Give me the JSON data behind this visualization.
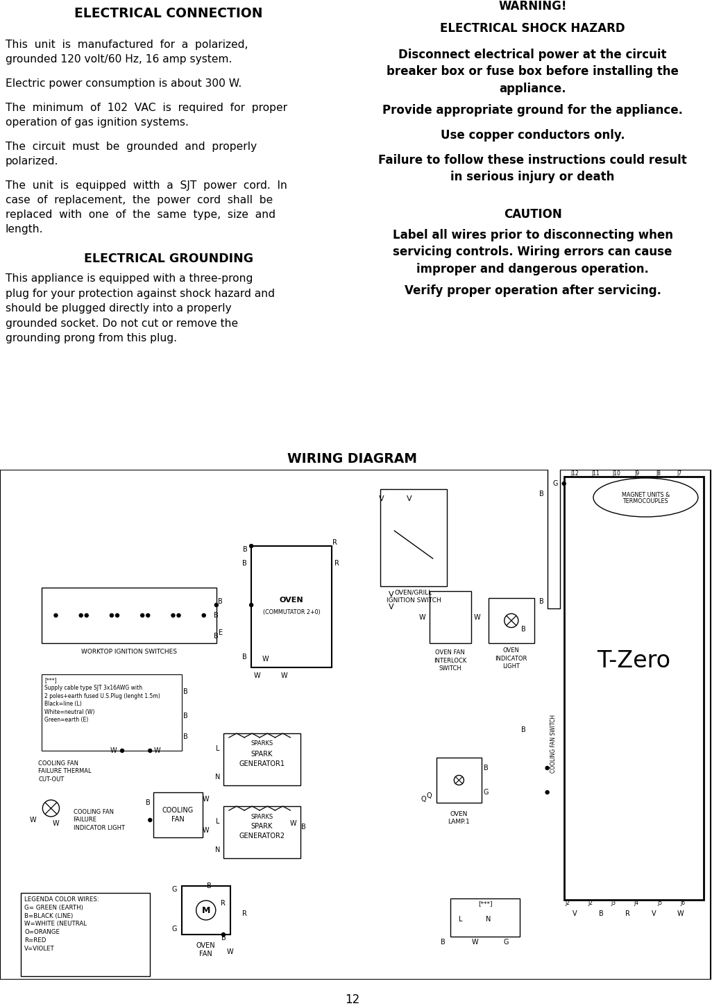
{
  "bg_color": "#ffffff",
  "page_number": "12",
  "left_title": "ELECTRICAL CONNECTION",
  "left_paragraphs": [
    "This  unit  is  manufactured  for  a  polarized,\ngrounded 120 volt/60 Hz, 16 amp system.",
    "Electric power consumption is about 300 W.",
    "The  minimum  of  102  VAC  is  required  for  proper\noperation of gas ignition systems.",
    "The  circuit  must  be  grounded  and  properly\npolarized.",
    "The  unit  is  equipped  witth  a  SJT  power  cord.  In\ncase  of  replacement,  the  power  cord  shall  be\nreplaced  with  one  of  the  same  type,  size  and\nlength."
  ],
  "grounding_title": "ELECTRICAL GROUNDING",
  "grounding_text": "This appliance is equipped with a three-prong\nplug for your protection against shock hazard and\nshould be plugged directly into a properly\ngrounded socket. Do not cut or remove the\ngrounding prong from this plug.",
  "warning_title": "WARNING!",
  "shock_title": "ELECTRICAL SHOCK HAZARD",
  "shock_bullets": [
    "Disconnect electrical power at the circuit\nbreaker box or fuse box before installing the\nappliance.",
    "Provide appropriate ground for the appliance.",
    "Use copper conductors only.",
    "Failure to follow these instructions could result\nin serious injury or death"
  ],
  "caution_title": "CAUTION",
  "caution_text": "Label all wires prior to disconnecting when\nservicing controls. Wiring errors can cause\nimproper and dangerous operation.",
  "verify_text": "Verify proper operation after servicing.",
  "wiring_title": "WIRING DIAGRAM"
}
